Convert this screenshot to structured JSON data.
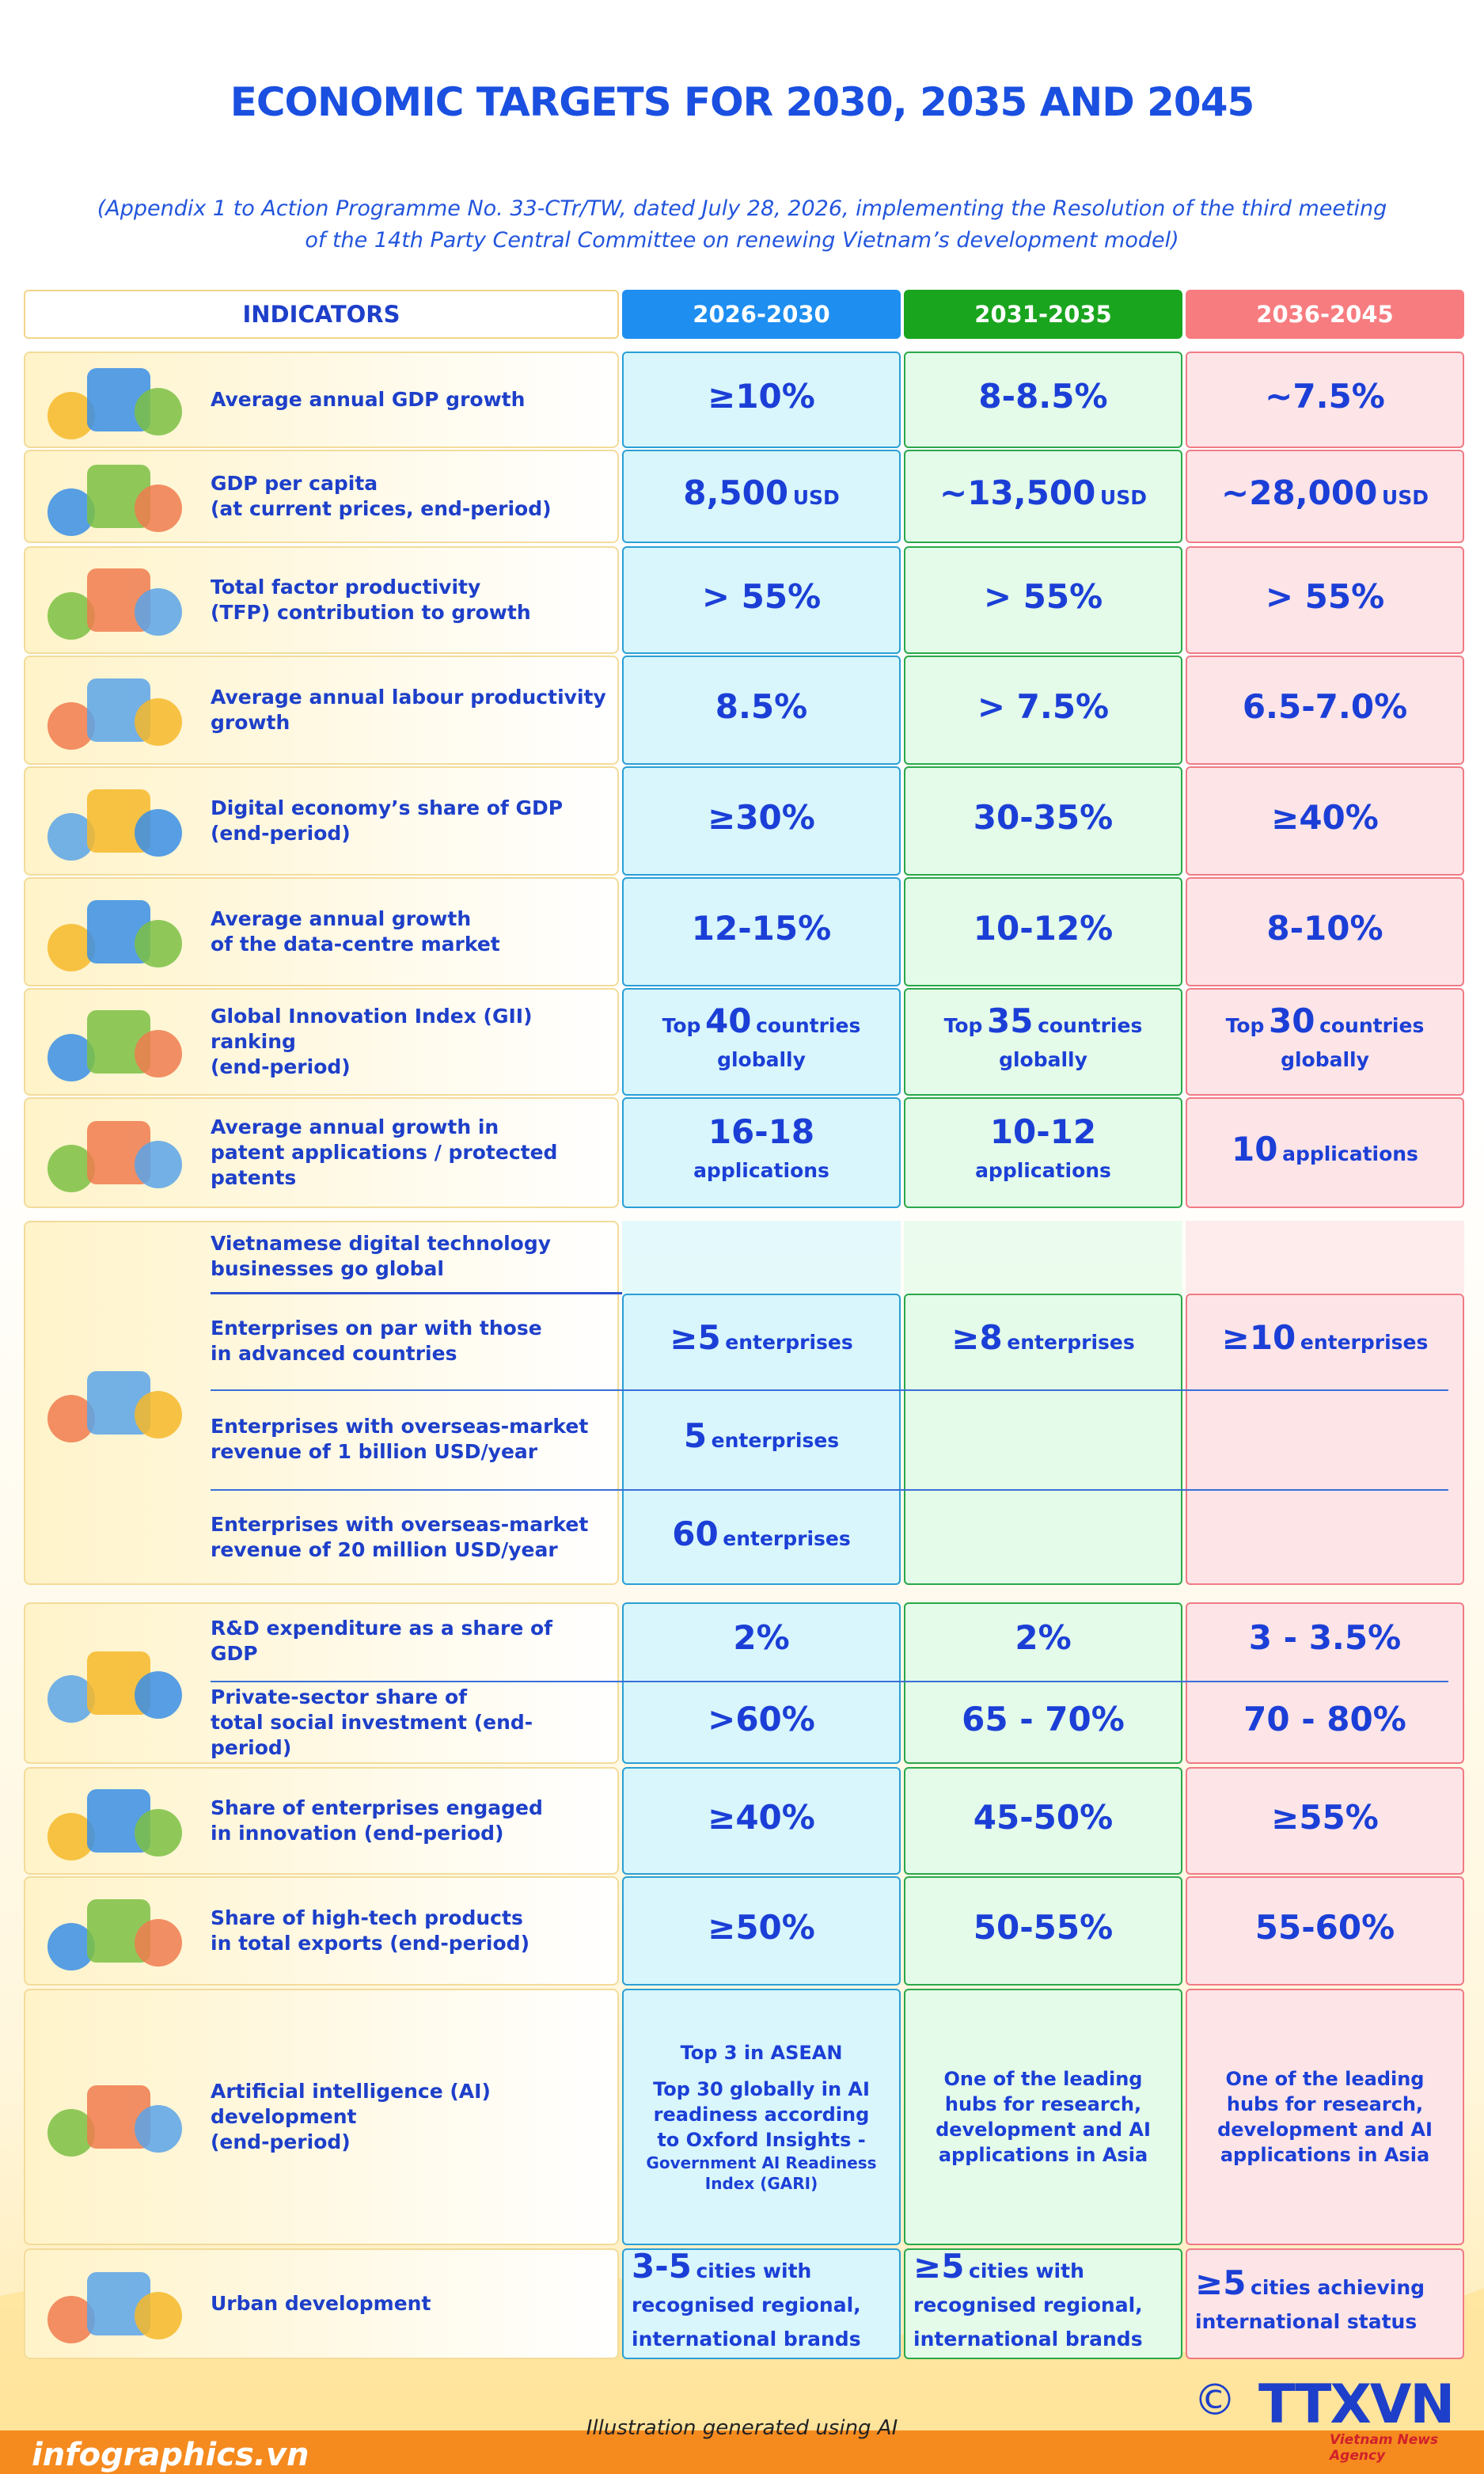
{
  "title": "ECONOMIC TARGETS FOR 2030, 2035 AND 2045",
  "subtitle": [
    "(Appendix 1 to Action Programme No. 33-CTr/TW, dated July 28, 2026, implementing the Resolution of the third meeting",
    "of the 14th Party Central Committee on renewing Vietnam’s development model)"
  ],
  "header": [
    "INDICATORS",
    "2026-2030",
    "2031-2035",
    "2036-2045"
  ],
  "rows": [
    {
      "indicator": [
        "Average annual GDP growth"
      ],
      "cells": [
        {
          "value": "≥10%"
        },
        {
          "value": "8-8.5%"
        },
        {
          "value": "~7.5%"
        }
      ]
    },
    {
      "indicator": [
        "GDP per capita",
        "(at current prices, end-period)"
      ],
      "cells": [
        {
          "value": "8,500",
          "unit": "USD"
        },
        {
          "value": "~13,500",
          "unit": "USD"
        },
        {
          "value": "~28,000",
          "unit": "USD"
        }
      ]
    },
    {
      "indicator": [
        "Total factor productivity",
        "(TFP) contribution to growth"
      ],
      "cells": [
        {
          "value": "> 55%"
        },
        {
          "value": "> 55%"
        },
        {
          "value": "> 55%"
        }
      ]
    },
    {
      "indicator": [
        "Average annual labour productivity",
        "growth"
      ],
      "cells": [
        {
          "value": "8.5%"
        },
        {
          "value": "> 7.5%"
        },
        {
          "value": "6.5-7.0%"
        }
      ]
    },
    {
      "indicator": [
        "Digital economy’s share of GDP",
        "(end-period)"
      ],
      "cells": [
        {
          "value": "≥30%"
        },
        {
          "value": "30-35%"
        },
        {
          "value": "≥40%"
        }
      ]
    },
    {
      "indicator": [
        "Average annual growth",
        "of the data-centre market"
      ],
      "cells": [
        {
          "value": "12-15%"
        },
        {
          "value": "10-12%"
        },
        {
          "value": "8-10%"
        }
      ]
    },
    {
      "indicator": [
        "Global Innovation Index (GII) ranking",
        "(end-period)"
      ],
      "cells": [
        {
          "pre": "Top",
          "value": "40",
          "unit": "countries globally"
        },
        {
          "pre": "Top",
          "value": "35",
          "unit": "countries globally"
        },
        {
          "pre": "Top",
          "value": "30",
          "unit": "countries globally"
        }
      ]
    },
    {
      "indicator": [
        "Average annual growth in",
        "patent applications / protected patents"
      ],
      "cells": [
        {
          "value": "16-18",
          "unit": "applications"
        },
        {
          "value": "10-12",
          "unit": "applications"
        },
        {
          "value": "10",
          "unit": "applications"
        }
      ]
    },
    {
      "indicator": [
        "Vietnamese digital technology",
        "businesses go global"
      ]
    },
    {
      "indicator": [
        "Enterprises on par with those",
        "in advanced countries"
      ],
      "cells": [
        {
          "value": "≥5",
          "unit": "enterprises"
        },
        {
          "value": "≥8",
          "unit": "enterprises"
        },
        {
          "value": "≥10",
          "unit": "enterprises"
        }
      ]
    },
    {
      "indicator": [
        "Enterprises with overseas-market",
        "revenue of 1 billion USD/year"
      ],
      "cells": [
        {
          "value": "5",
          "unit": "enterprises"
        }
      ]
    },
    {
      "indicator": [
        "Enterprises with overseas-market",
        "revenue of 20 million USD/year"
      ],
      "cells": [
        {
          "value": "60",
          "unit": "enterprises"
        }
      ]
    },
    {
      "indicator": [
        "R&D expenditure as a share of GDP"
      ],
      "cells": [
        {
          "value": "2%"
        },
        {
          "value": "2%"
        },
        {
          "value": "3 - 3.5%"
        }
      ]
    },
    {
      "indicator": [
        "Private-sector share of",
        "total social investment (end-period)"
      ],
      "cells": [
        {
          "value": ">60%"
        },
        {
          "value": "65 - 70%"
        },
        {
          "value": "70 - 80%"
        }
      ]
    },
    {
      "indicator": [
        "Share of enterprises engaged",
        "in innovation (end-period)"
      ],
      "cells": [
        {
          "value": "≥40%"
        },
        {
          "value": "45-50%"
        },
        {
          "value": "≥55%"
        }
      ]
    },
    {
      "indicator": [
        "Share of high-tech products",
        "in total exports (end-period)"
      ],
      "cells": [
        {
          "value": "≥50%"
        },
        {
          "value": "50-55%"
        },
        {
          "value": "55-60%"
        }
      ]
    },
    {
      "indicator": [
        "Artificial intelligence (AI) development",
        "(end-period)"
      ],
      "cells": [
        {
          "text": [
            "Top 3 in ASEAN",
            "Top 30 globally in AI readiness according to Oxford Insights -",
            "Government AI Readiness Index (GARI)"
          ]
        },
        {
          "text": [
            "One of the leading hubs for research, development and AI applications in Asia"
          ]
        },
        {
          "text": [
            "One of the leading hubs for research, development and AI applications in Asia"
          ]
        }
      ]
    },
    {
      "indicator": [
        "Urban development"
      ],
      "cells": [
        {
          "value": "3-5",
          "unit": "cities with recognised regional, international brands"
        },
        {
          "value": "≥5",
          "unit": "cities with recognised regional, international brands"
        },
        {
          "value": "≥5",
          "unit": "cities achieving international status"
        }
      ]
    }
  ],
  "footer": {
    "credit": "Illustration generated using AI",
    "site": "infographics.vn",
    "copyright": "©",
    "logo": "TTXVN",
    "agency": "Vietnam News Agency"
  }
}
